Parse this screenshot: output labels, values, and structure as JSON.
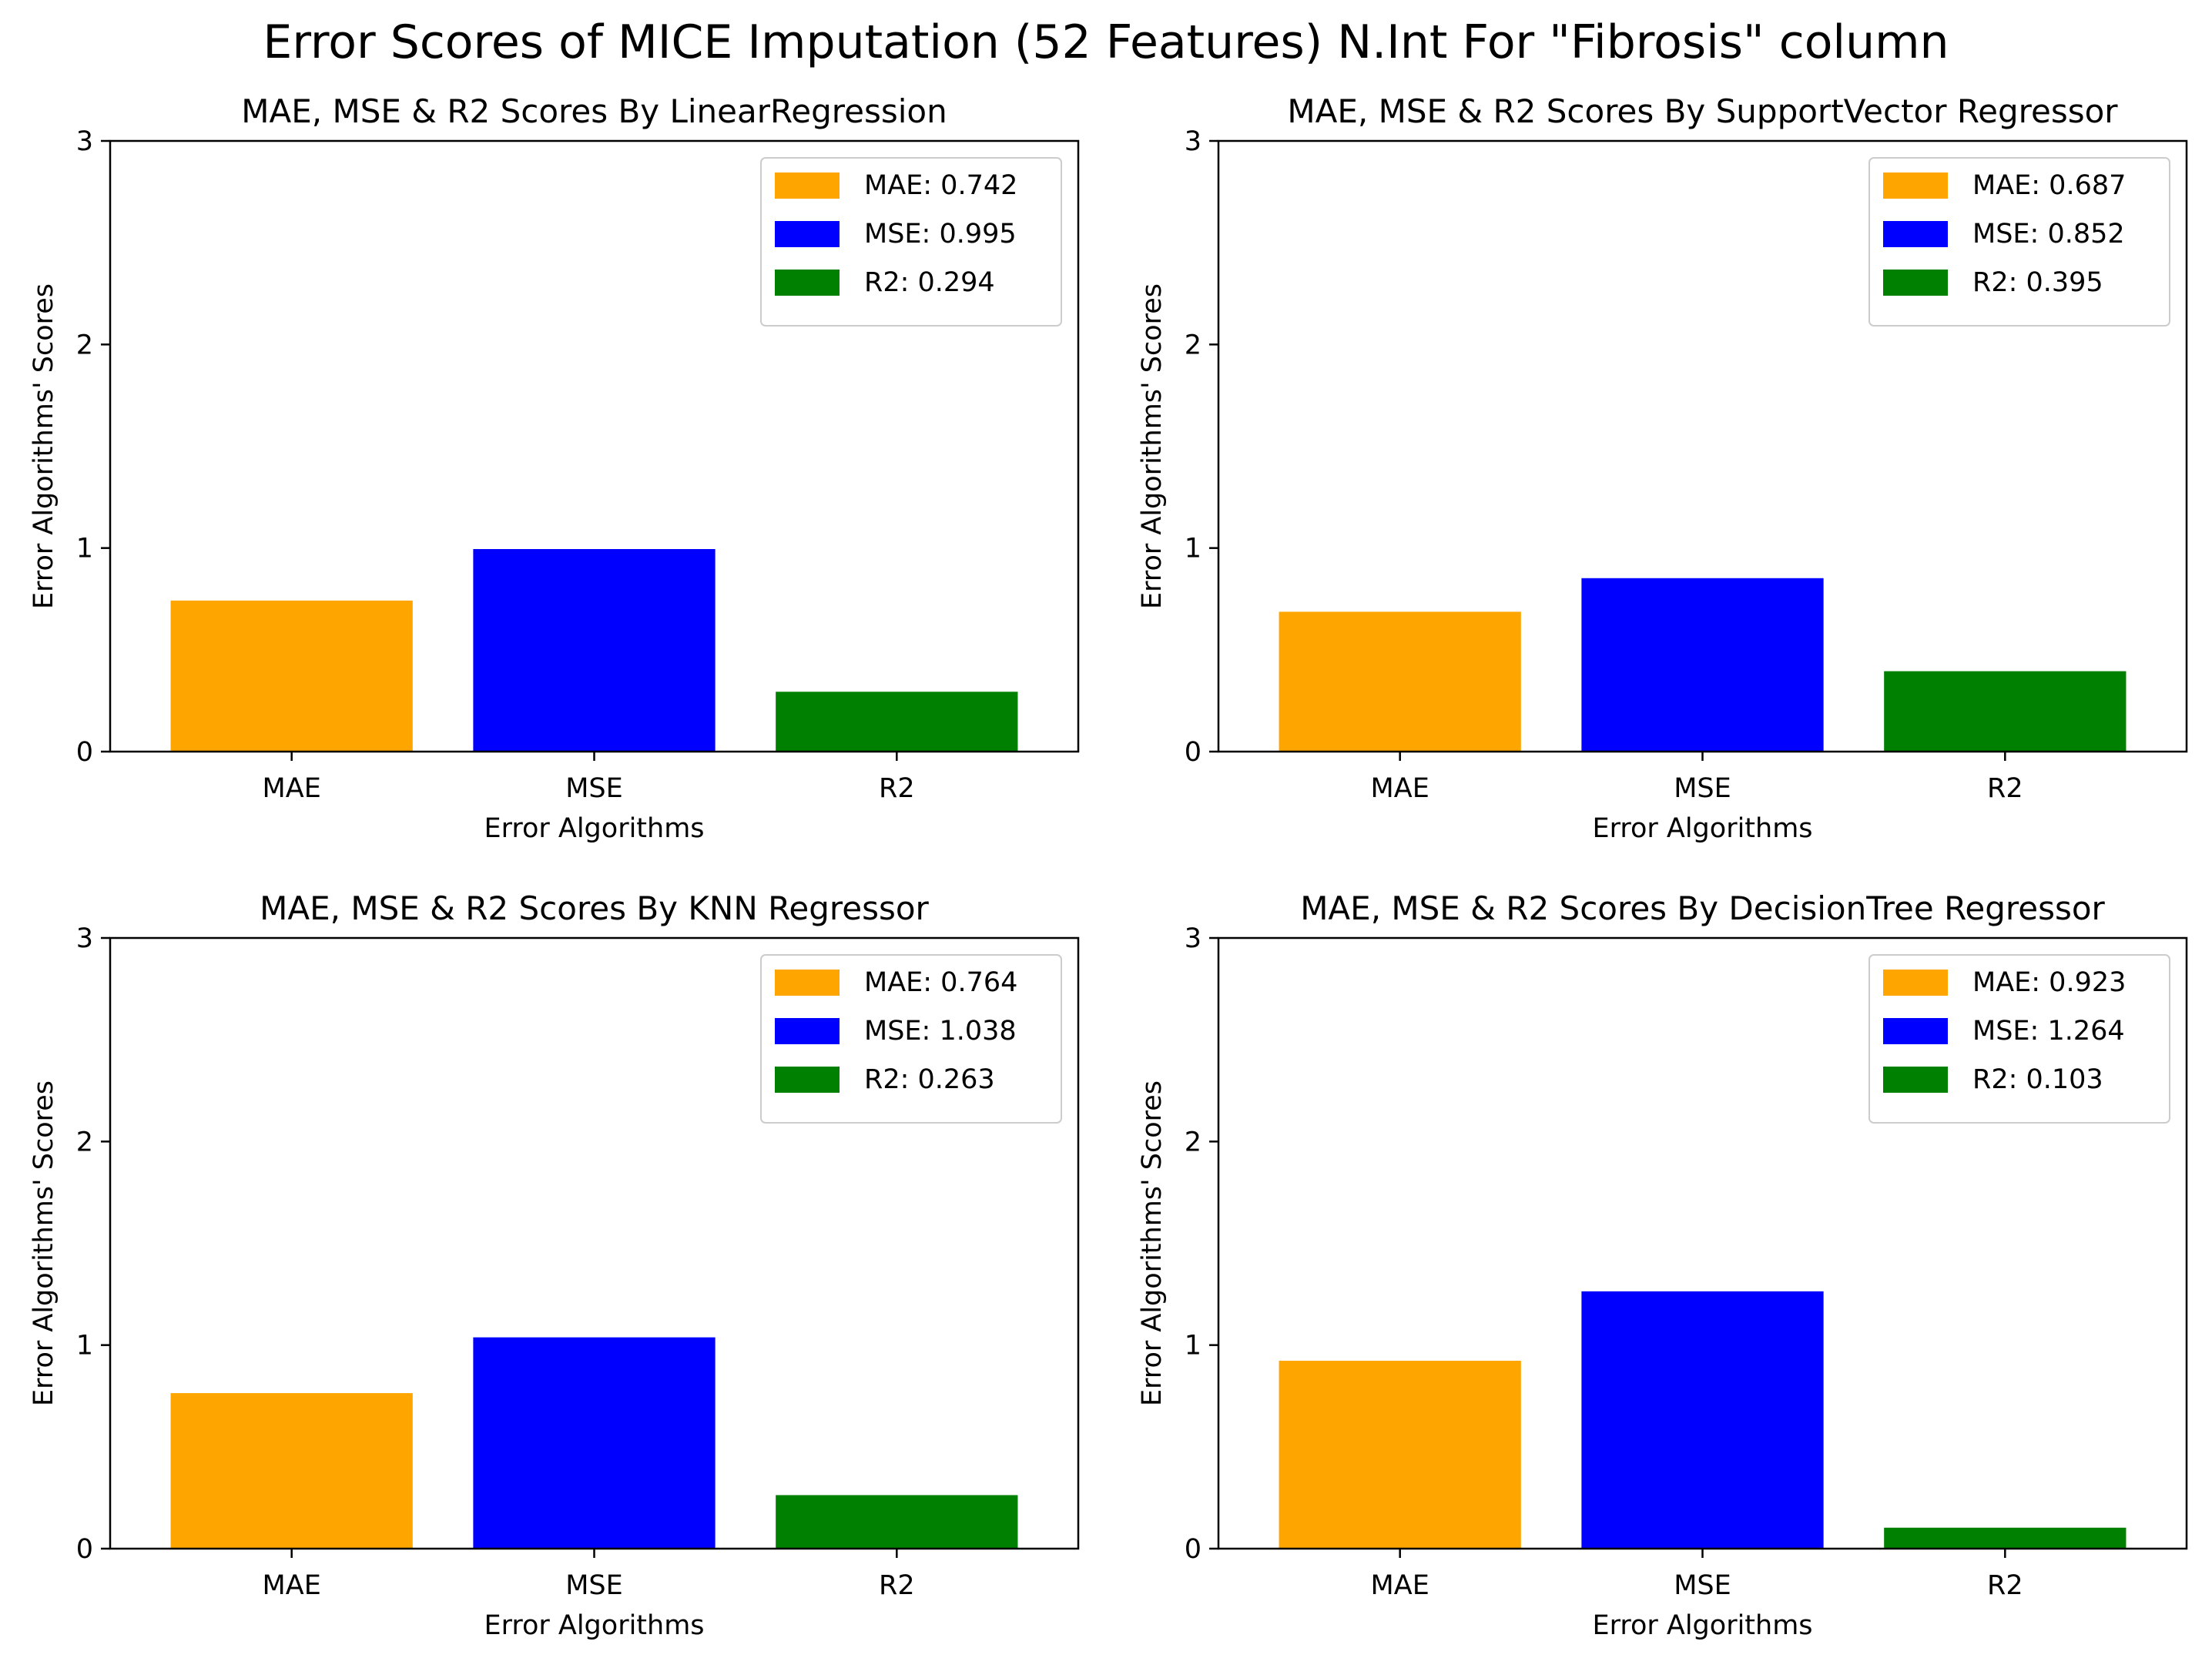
{
  "figure": {
    "suptitle": "Error Scores of MICE Imputation (52 Features) N.Int For \"Fibrosis\" column"
  },
  "chart_data": [
    {
      "type": "bar",
      "title": "MAE, MSE & R2 Scores By LinearRegression",
      "xlabel": "Error Algorithms",
      "ylabel": "Error Algorithms' Scores",
      "categories": [
        "MAE",
        "MSE",
        "R2"
      ],
      "values": [
        0.742,
        0.995,
        0.294
      ],
      "colors": [
        "#ffa500",
        "#0000ff",
        "#008000"
      ],
      "legend": [
        "MAE: 0.742",
        "MSE: 0.995",
        "R2: 0.294"
      ],
      "legend_position": "top-right",
      "ylim": [
        0,
        3
      ],
      "yticks": [
        "0",
        "1",
        "2",
        "3"
      ],
      "grid": false
    },
    {
      "type": "bar",
      "title": "MAE, MSE & R2 Scores By SupportVector Regressor",
      "xlabel": "Error Algorithms",
      "ylabel": "Error Algorithms' Scores",
      "categories": [
        "MAE",
        "MSE",
        "R2"
      ],
      "values": [
        0.687,
        0.852,
        0.395
      ],
      "colors": [
        "#ffa500",
        "#0000ff",
        "#008000"
      ],
      "legend": [
        "MAE: 0.687",
        "MSE: 0.852",
        "R2: 0.395"
      ],
      "legend_position": "top-right",
      "ylim": [
        0,
        3
      ],
      "yticks": [
        "0",
        "1",
        "2",
        "3"
      ],
      "grid": false
    },
    {
      "type": "bar",
      "title": "MAE, MSE & R2 Scores By KNN Regressor",
      "xlabel": "Error Algorithms",
      "ylabel": "Error Algorithms' Scores",
      "categories": [
        "MAE",
        "MSE",
        "R2"
      ],
      "values": [
        0.764,
        1.038,
        0.263
      ],
      "colors": [
        "#ffa500",
        "#0000ff",
        "#008000"
      ],
      "legend": [
        "MAE: 0.764",
        "MSE: 1.038",
        "R2: 0.263"
      ],
      "legend_position": "top-right",
      "ylim": [
        0,
        3
      ],
      "yticks": [
        "0",
        "1",
        "2",
        "3"
      ],
      "grid": false
    },
    {
      "type": "bar",
      "title": "MAE, MSE & R2 Scores By DecisionTree Regressor",
      "xlabel": "Error Algorithms",
      "ylabel": "Error Algorithms' Scores",
      "categories": [
        "MAE",
        "MSE",
        "R2"
      ],
      "values": [
        0.923,
        1.264,
        0.103
      ],
      "colors": [
        "#ffa500",
        "#0000ff",
        "#008000"
      ],
      "legend": [
        "MAE: 0.923",
        "MSE: 1.264",
        "R2: 0.103"
      ],
      "legend_position": "top-right",
      "ylim": [
        0,
        3
      ],
      "yticks": [
        "0",
        "1",
        "2",
        "3"
      ],
      "grid": false
    }
  ]
}
